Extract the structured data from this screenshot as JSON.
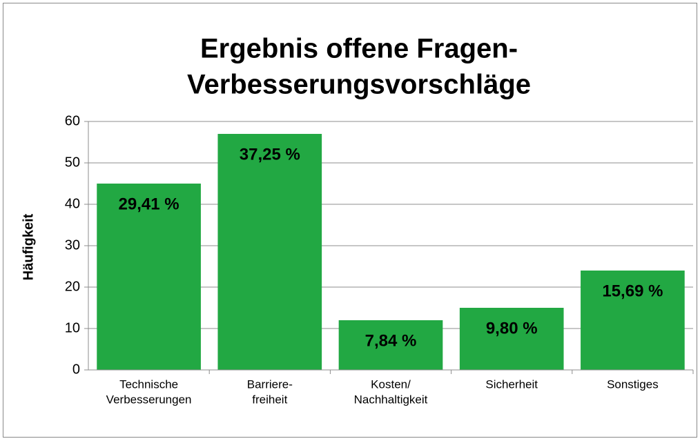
{
  "chart_data": {
    "type": "bar",
    "title": [
      "Ergebnis offene Fragen-",
      "Verbesserungsvorschläge"
    ],
    "y_label": "Häufigkeit",
    "categories": [
      [
        "Technische",
        "Verbesserungen"
      ],
      [
        "Barriere-",
        "freiheit"
      ],
      [
        "Kosten/",
        "Nachhaltigkeit"
      ],
      [
        "Sicherheit"
      ],
      [
        "Sonstiges"
      ]
    ],
    "values": [
      45,
      57,
      12,
      15,
      24
    ],
    "annotations": [
      "29,41 %",
      "37,25 %",
      "7,84 %",
      "9,80 %",
      "15,69 %"
    ],
    "color": "#22a843",
    "ylim": [
      0,
      60
    ],
    "yticks": [
      0,
      10,
      20,
      30,
      40,
      50,
      60
    ],
    "grid": true
  }
}
